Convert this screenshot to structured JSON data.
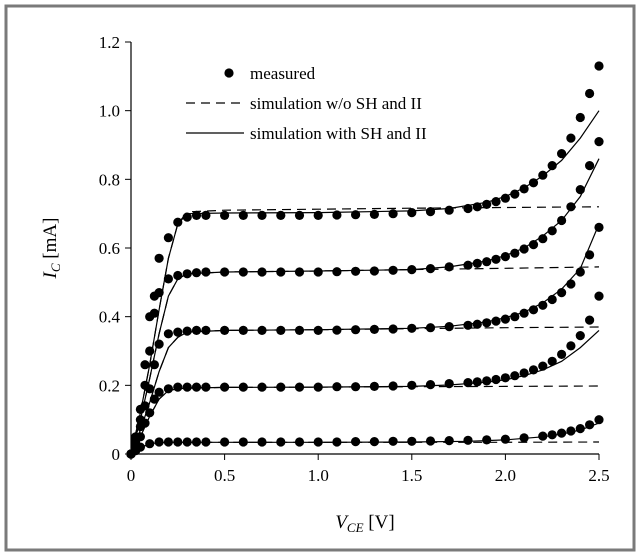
{
  "chart_data": {
    "type": "scatter",
    "xlabel_main": "V",
    "xlabel_sub": "CE",
    "xlabel_unit": " [V]",
    "ylabel_main": "I",
    "ylabel_sub": "C",
    "ylabel_unit": " [mA]",
    "xlim": [
      0,
      2.5
    ],
    "ylim": [
      0,
      1.2
    ],
    "xticks": [
      0,
      0.5,
      1.0,
      1.5,
      2.0,
      2.5
    ],
    "xtick_labels": [
      "0",
      "0.5",
      "1.0",
      "1.5",
      "2.0",
      "2.5"
    ],
    "yticks": [
      0,
      0.2,
      0.4,
      0.6,
      0.8,
      1.0,
      1.2
    ],
    "ytick_labels": [
      "0",
      "0.2",
      "0.4",
      "0.6",
      "0.8",
      "1.0",
      "1.2"
    ],
    "grid": false,
    "legend": {
      "placement": "top-left",
      "entries": [
        {
          "label": "measured",
          "style": "marker"
        },
        {
          "label": "simulation w/o SH and II",
          "style": "dashed"
        },
        {
          "label": "simulation with SH and II",
          "style": "solid"
        }
      ]
    },
    "series": [
      {
        "curve": 1,
        "measured": {
          "x": [
            0,
            0.025,
            0.05,
            0.1,
            0.15,
            0.2,
            0.25,
            0.3,
            0.35,
            0.4,
            0.5,
            0.6,
            0.7,
            0.8,
            0.9,
            1.0,
            1.1,
            1.2,
            1.3,
            1.4,
            1.5,
            1.6,
            1.7,
            1.8,
            1.9,
            2.0,
            2.1,
            2.2,
            2.25,
            2.3,
            2.35,
            2.4,
            2.45,
            2.5
          ],
          "y": [
            0,
            0.01,
            0.02,
            0.03,
            0.035,
            0.035,
            0.035,
            0.035,
            0.035,
            0.035,
            0.035,
            0.035,
            0.035,
            0.035,
            0.035,
            0.035,
            0.035,
            0.036,
            0.036,
            0.037,
            0.037,
            0.038,
            0.039,
            0.04,
            0.041,
            0.043,
            0.047,
            0.052,
            0.056,
            0.061,
            0.067,
            0.074,
            0.085,
            0.1
          ]
        },
        "sim_no_sh_ii": {
          "x": [
            0,
            0.05,
            0.1,
            0.15,
            0.2,
            0.3,
            0.5,
            1.0,
            1.5,
            2.0,
            2.5
          ],
          "y": [
            0,
            0.018,
            0.03,
            0.033,
            0.034,
            0.034,
            0.034,
            0.034,
            0.034,
            0.034,
            0.035
          ]
        },
        "sim_with_sh_ii": {
          "x": [
            0,
            0.05,
            0.1,
            0.15,
            0.2,
            0.3,
            0.5,
            1.0,
            1.5,
            1.8,
            2.0,
            2.2,
            2.3,
            2.4,
            2.5
          ],
          "y": [
            0,
            0.018,
            0.03,
            0.033,
            0.034,
            0.034,
            0.034,
            0.034,
            0.035,
            0.037,
            0.041,
            0.05,
            0.058,
            0.07,
            0.09
          ]
        }
      },
      {
        "curve": 2,
        "measured": {
          "x": [
            0,
            0.025,
            0.05,
            0.075,
            0.1,
            0.125,
            0.15,
            0.2,
            0.25,
            0.3,
            0.35,
            0.4,
            0.5,
            0.6,
            0.7,
            0.8,
            0.9,
            1.0,
            1.1,
            1.2,
            1.3,
            1.4,
            1.5,
            1.6,
            1.7,
            1.8,
            1.85,
            1.9,
            1.95,
            2.0,
            2.05,
            2.1,
            2.15,
            2.2,
            2.25,
            2.3,
            2.35,
            2.4,
            2.45,
            2.5
          ],
          "y": [
            0,
            0.02,
            0.05,
            0.09,
            0.12,
            0.16,
            0.18,
            0.19,
            0.195,
            0.195,
            0.195,
            0.195,
            0.195,
            0.195,
            0.195,
            0.195,
            0.195,
            0.195,
            0.196,
            0.196,
            0.197,
            0.198,
            0.2,
            0.202,
            0.205,
            0.208,
            0.21,
            0.213,
            0.217,
            0.222,
            0.228,
            0.236,
            0.245,
            0.256,
            0.27,
            0.29,
            0.315,
            0.345,
            0.39,
            0.46
          ]
        },
        "sim_no_sh_ii": {
          "x": [
            0,
            0.05,
            0.1,
            0.15,
            0.2,
            0.25,
            0.3,
            0.5,
            1.0,
            1.5,
            2.0,
            2.5
          ],
          "y": [
            0,
            0.05,
            0.11,
            0.16,
            0.185,
            0.19,
            0.192,
            0.194,
            0.195,
            0.196,
            0.197,
            0.198
          ]
        },
        "sim_with_sh_ii": {
          "x": [
            0,
            0.05,
            0.1,
            0.15,
            0.2,
            0.25,
            0.3,
            0.5,
            1.0,
            1.5,
            1.7,
            1.9,
            2.0,
            2.1,
            2.2,
            2.3,
            2.4,
            2.5
          ],
          "y": [
            0,
            0.05,
            0.11,
            0.16,
            0.185,
            0.19,
            0.192,
            0.194,
            0.195,
            0.197,
            0.201,
            0.209,
            0.216,
            0.228,
            0.245,
            0.27,
            0.31,
            0.36
          ]
        }
      },
      {
        "curve": 3,
        "measured": {
          "x": [
            0,
            0.025,
            0.05,
            0.075,
            0.1,
            0.125,
            0.15,
            0.2,
            0.25,
            0.3,
            0.35,
            0.4,
            0.5,
            0.6,
            0.7,
            0.8,
            0.9,
            1.0,
            1.1,
            1.2,
            1.3,
            1.4,
            1.5,
            1.6,
            1.7,
            1.8,
            1.85,
            1.9,
            1.95,
            2.0,
            2.05,
            2.1,
            2.15,
            2.2,
            2.25,
            2.3,
            2.35,
            2.4,
            2.45,
            2.5
          ],
          "y": [
            0,
            0.03,
            0.08,
            0.14,
            0.19,
            0.26,
            0.32,
            0.35,
            0.355,
            0.358,
            0.36,
            0.36,
            0.36,
            0.36,
            0.36,
            0.36,
            0.36,
            0.36,
            0.361,
            0.362,
            0.363,
            0.364,
            0.366,
            0.368,
            0.371,
            0.375,
            0.378,
            0.382,
            0.387,
            0.393,
            0.4,
            0.41,
            0.42,
            0.433,
            0.45,
            0.47,
            0.495,
            0.53,
            0.58,
            0.66
          ]
        },
        "sim_no_sh_ii": {
          "x": [
            0,
            0.05,
            0.1,
            0.15,
            0.2,
            0.25,
            0.3,
            0.5,
            1.0,
            1.5,
            2.0,
            2.5
          ],
          "y": [
            0,
            0.07,
            0.15,
            0.24,
            0.31,
            0.34,
            0.355,
            0.36,
            0.362,
            0.365,
            0.368,
            0.37
          ]
        },
        "sim_with_sh_ii": {
          "x": [
            0,
            0.05,
            0.1,
            0.15,
            0.2,
            0.25,
            0.3,
            0.5,
            1.0,
            1.5,
            1.7,
            1.9,
            2.0,
            2.1,
            2.2,
            2.3,
            2.4,
            2.5
          ],
          "y": [
            0,
            0.07,
            0.15,
            0.24,
            0.31,
            0.34,
            0.355,
            0.36,
            0.362,
            0.366,
            0.372,
            0.385,
            0.397,
            0.413,
            0.44,
            0.48,
            0.54,
            0.67
          ]
        }
      },
      {
        "curve": 4,
        "measured": {
          "x": [
            0,
            0.025,
            0.05,
            0.075,
            0.1,
            0.125,
            0.15,
            0.2,
            0.25,
            0.3,
            0.35,
            0.4,
            0.5,
            0.6,
            0.7,
            0.8,
            0.9,
            1.0,
            1.1,
            1.2,
            1.3,
            1.4,
            1.5,
            1.6,
            1.7,
            1.8,
            1.85,
            1.9,
            1.95,
            2.0,
            2.05,
            2.1,
            2.15,
            2.2,
            2.25,
            2.3,
            2.35,
            2.4,
            2.45,
            2.5
          ],
          "y": [
            0,
            0.04,
            0.1,
            0.2,
            0.3,
            0.41,
            0.47,
            0.51,
            0.52,
            0.525,
            0.528,
            0.53,
            0.53,
            0.53,
            0.53,
            0.53,
            0.53,
            0.53,
            0.531,
            0.532,
            0.533,
            0.535,
            0.537,
            0.54,
            0.545,
            0.55,
            0.555,
            0.56,
            0.567,
            0.575,
            0.585,
            0.597,
            0.61,
            0.627,
            0.65,
            0.68,
            0.72,
            0.77,
            0.84,
            0.91
          ]
        },
        "sim_no_sh_ii": {
          "x": [
            0,
            0.05,
            0.1,
            0.15,
            0.2,
            0.25,
            0.3,
            0.5,
            1.0,
            1.5,
            2.0,
            2.5
          ],
          "y": [
            0,
            0.1,
            0.22,
            0.35,
            0.46,
            0.51,
            0.525,
            0.53,
            0.533,
            0.537,
            0.541,
            0.545
          ]
        },
        "sim_with_sh_ii": {
          "x": [
            0,
            0.05,
            0.1,
            0.15,
            0.2,
            0.25,
            0.3,
            0.5,
            1.0,
            1.5,
            1.7,
            1.9,
            2.0,
            2.1,
            2.2,
            2.3,
            2.4,
            2.5
          ],
          "y": [
            0,
            0.1,
            0.22,
            0.35,
            0.46,
            0.51,
            0.525,
            0.53,
            0.533,
            0.537,
            0.545,
            0.562,
            0.578,
            0.6,
            0.635,
            0.68,
            0.75,
            0.86
          ]
        }
      },
      {
        "curve": 5,
        "measured": {
          "x": [
            0,
            0.025,
            0.05,
            0.075,
            0.1,
            0.125,
            0.15,
            0.2,
            0.25,
            0.3,
            0.35,
            0.4,
            0.5,
            0.6,
            0.7,
            0.8,
            0.9,
            1.0,
            1.1,
            1.2,
            1.3,
            1.4,
            1.5,
            1.6,
            1.7,
            1.8,
            1.85,
            1.9,
            1.95,
            2.0,
            2.05,
            2.1,
            2.15,
            2.2,
            2.25,
            2.3,
            2.35,
            2.4,
            2.45,
            2.5
          ],
          "y": [
            0,
            0.05,
            0.13,
            0.26,
            0.4,
            0.46,
            0.57,
            0.63,
            0.675,
            0.69,
            0.695,
            0.695,
            0.695,
            0.695,
            0.695,
            0.695,
            0.695,
            0.695,
            0.696,
            0.697,
            0.698,
            0.7,
            0.703,
            0.706,
            0.71,
            0.715,
            0.72,
            0.727,
            0.735,
            0.745,
            0.757,
            0.772,
            0.79,
            0.812,
            0.84,
            0.875,
            0.92,
            0.98,
            1.05,
            1.13
          ]
        },
        "sim_no_sh_ii": {
          "x": [
            0,
            0.05,
            0.1,
            0.15,
            0.2,
            0.25,
            0.3,
            0.5,
            1.0,
            1.5,
            2.0,
            2.5
          ],
          "y": [
            0,
            0.12,
            0.26,
            0.42,
            0.57,
            0.67,
            0.705,
            0.71,
            0.713,
            0.716,
            0.718,
            0.72
          ]
        },
        "sim_with_sh_ii": {
          "x": [
            0,
            0.05,
            0.1,
            0.15,
            0.2,
            0.25,
            0.3,
            0.5,
            1.0,
            1.5,
            1.7,
            1.9,
            2.0,
            2.1,
            2.2,
            2.3,
            2.4,
            2.5
          ],
          "y": [
            0,
            0.12,
            0.26,
            0.42,
            0.57,
            0.67,
            0.7,
            0.702,
            0.703,
            0.708,
            0.715,
            0.733,
            0.75,
            0.775,
            0.81,
            0.855,
            0.92,
            1.0
          ]
        }
      }
    ]
  }
}
